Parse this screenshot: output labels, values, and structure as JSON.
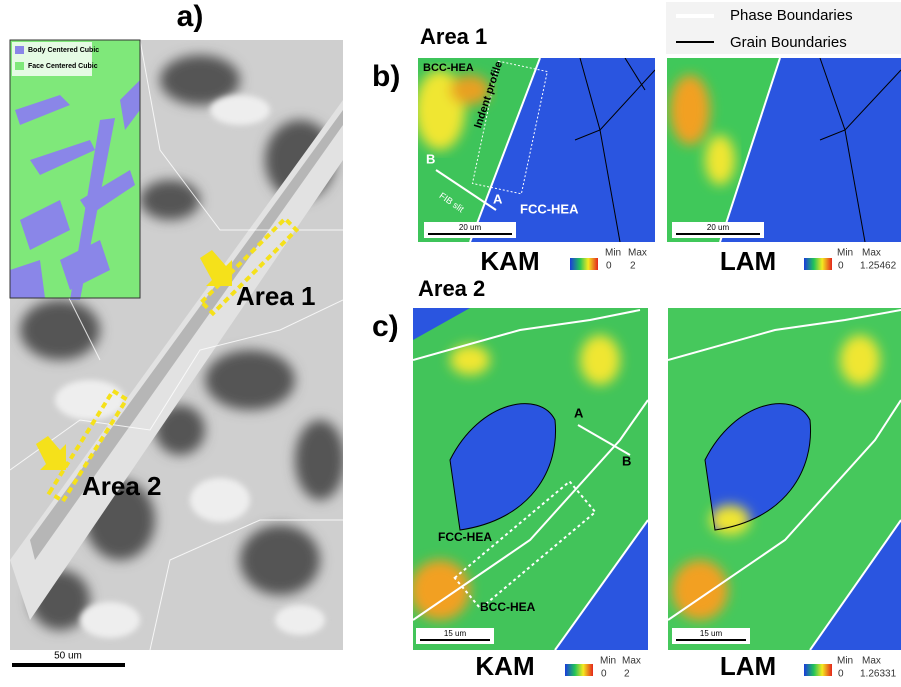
{
  "legend": {
    "items": [
      "Phase Boundaries",
      "Grain Boundaries"
    ]
  },
  "panel_a": {
    "label": "a)",
    "inset_legend": [
      "Body Centered Cubic",
      "Face Centered Cubic"
    ],
    "annotations": [
      "Area 1",
      "Area 2"
    ],
    "scale_bar": "50 um"
  },
  "panel_b": {
    "label": "b)",
    "title": "Area 1",
    "maps": [
      {
        "name": "KAM",
        "scale_bar": "20 um",
        "colorbar": {
          "min_label": "Min",
          "max_label": "Max",
          "min": 0,
          "max": 2
        },
        "annotations": [
          "BCC-HEA",
          "Indent profile",
          "B",
          "A",
          "FIB slit",
          "FCC-HEA"
        ]
      },
      {
        "name": "LAM",
        "scale_bar": "20 um",
        "colorbar": {
          "min_label": "Min",
          "max_label": "Max",
          "min": 0,
          "max": 1.25462
        }
      }
    ]
  },
  "panel_c": {
    "label": "c)",
    "title": "Area 2",
    "maps": [
      {
        "name": "KAM",
        "scale_bar": "15 um",
        "colorbar": {
          "min_label": "Min",
          "max_label": "Max",
          "min": 0,
          "max": 2
        },
        "annotations": [
          "A",
          "B",
          "FCC-HEA",
          "BCC-HEA"
        ]
      },
      {
        "name": "LAM",
        "scale_bar": "15 um",
        "colorbar": {
          "min_label": "Min",
          "max_label": "Max",
          "min": 0,
          "max": 1.26331
        }
      }
    ]
  }
}
